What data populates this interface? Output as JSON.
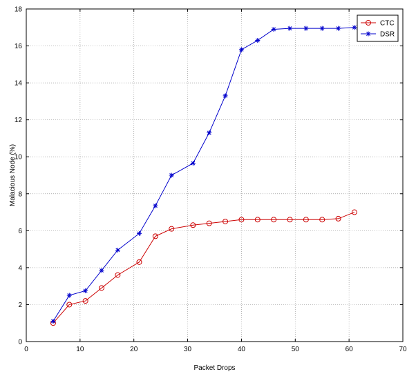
{
  "chart_data": {
    "type": "line",
    "xlabel": "Packet Drops",
    "ylabel": "Malacious Node (%)",
    "xlim": [
      0,
      70
    ],
    "ylim": [
      0,
      18
    ],
    "xticks": [
      0,
      10,
      20,
      30,
      40,
      50,
      60,
      70
    ],
    "yticks": [
      0,
      2,
      4,
      6,
      8,
      10,
      12,
      14,
      16,
      18
    ],
    "grid": true,
    "legend_position": "top-right",
    "series": [
      {
        "name": "CTC",
        "color": "#cc0000",
        "marker": "circle",
        "x": [
          5,
          8,
          11,
          14,
          17,
          21,
          24,
          27,
          31,
          34,
          37,
          40,
          43,
          46,
          49,
          52,
          55,
          58,
          61
        ],
        "y": [
          1.0,
          2.0,
          2.2,
          2.9,
          3.6,
          4.3,
          5.7,
          6.1,
          6.3,
          6.4,
          6.5,
          6.6,
          6.6,
          6.6,
          6.6,
          6.6,
          6.6,
          6.65,
          7.0
        ]
      },
      {
        "name": "DSR",
        "color": "#0000cc",
        "marker": "star",
        "x": [
          5,
          8,
          11,
          14,
          17,
          21,
          24,
          27,
          31,
          34,
          37,
          40,
          43,
          46,
          49,
          52,
          55,
          58,
          61
        ],
        "y": [
          1.1,
          2.5,
          2.75,
          3.85,
          4.95,
          5.85,
          7.35,
          9.0,
          9.65,
          11.3,
          13.3,
          15.8,
          16.3,
          16.9,
          16.95,
          16.95,
          16.95,
          16.95,
          17.0
        ]
      }
    ]
  }
}
